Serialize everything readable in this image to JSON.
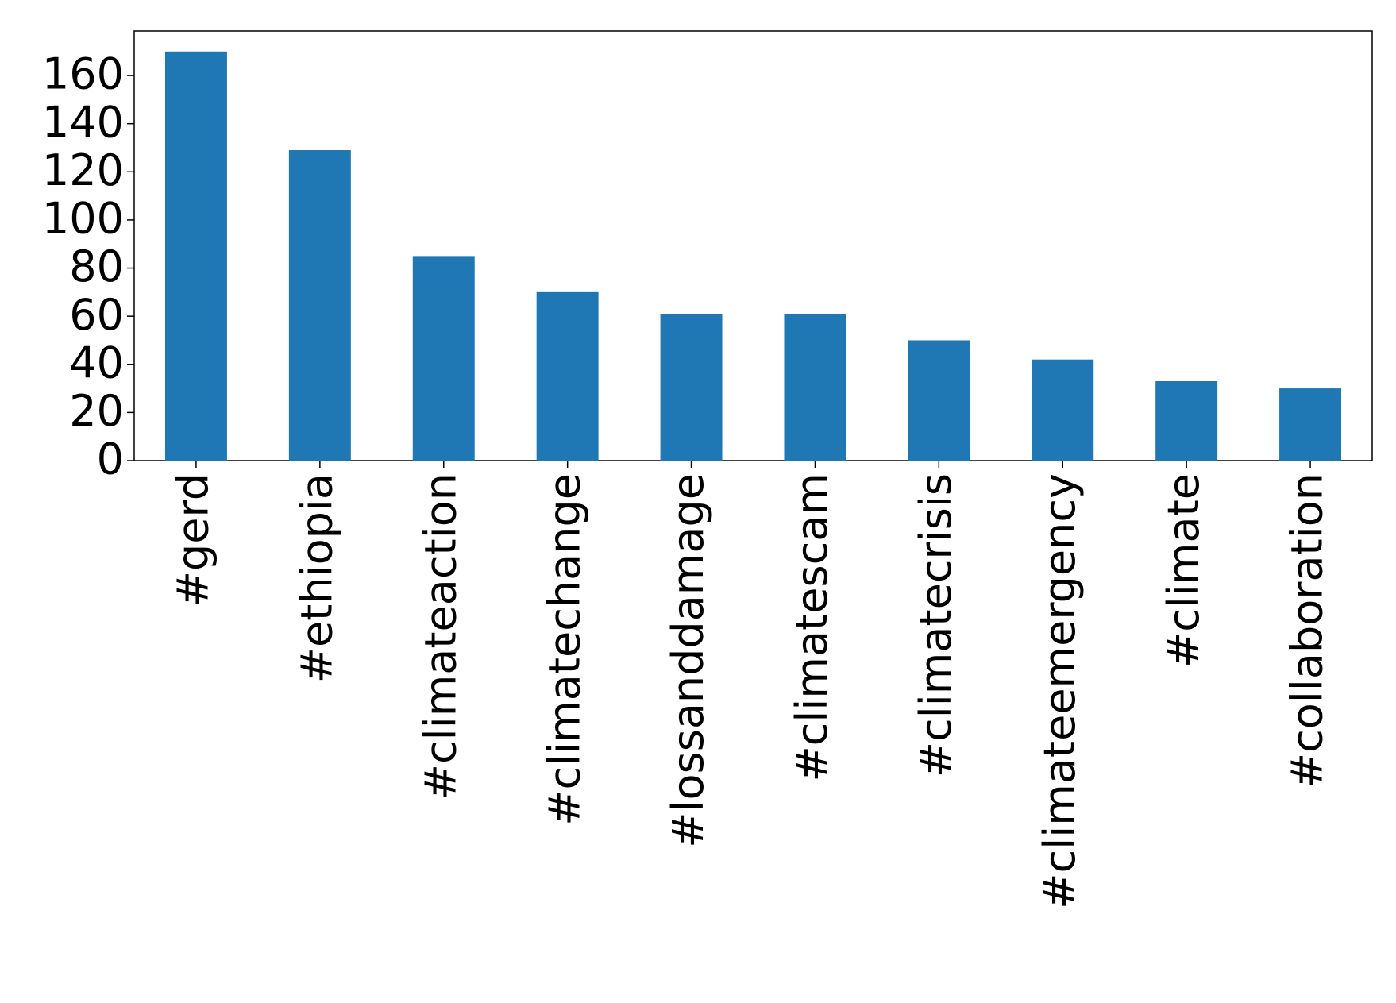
{
  "chart_data": {
    "type": "bar",
    "categories": [
      "#gerd",
      "#ethiopia",
      "#climateaction",
      "#climatechange",
      "#lossanddamage",
      "#climatescam",
      "#climatecrisis",
      "#climateemergency",
      "#climate",
      "#collaboration"
    ],
    "values": [
      170,
      129,
      85,
      70,
      61,
      61,
      50,
      42,
      33,
      30
    ],
    "color": "#1f77b4",
    "ylim": [
      0,
      178.5
    ],
    "yticks": [
      0,
      20,
      40,
      60,
      80,
      100,
      120,
      140,
      160
    ],
    "grid": false
  }
}
